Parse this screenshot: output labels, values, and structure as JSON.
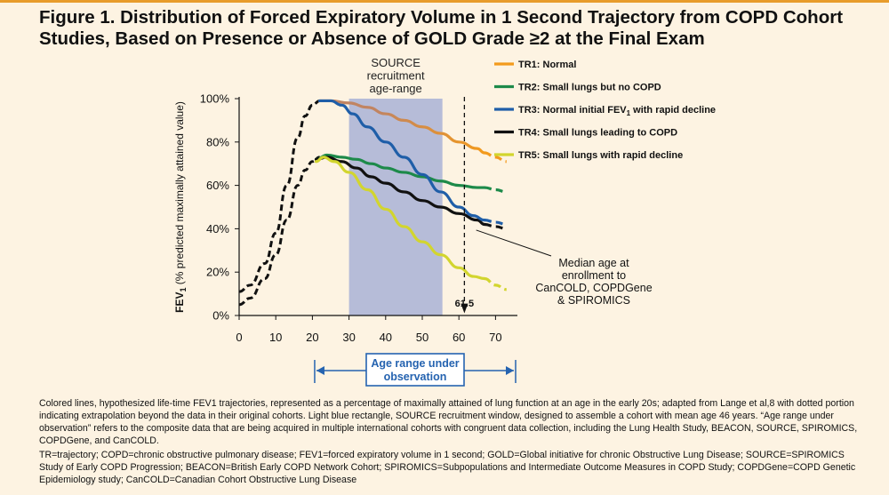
{
  "figure": {
    "title": "Figure 1. Distribution of Forced Expiratory Volume in 1 Second Trajectory from COPD Cohort Studies, Based on Presence or Absence of GOLD Grade ≥2 at the Final Exam",
    "caption_main": "Colored lines, hypothesized life-time FEV1 trajectories, represented as a percentage of maximally attained of lung function at an age in the early 20s; adapted from Lange et al,8 with dotted portion indicating extrapolation beyond the data in their original cohorts. Light blue rectangle, SOURCE recruitment window, designed to assemble a cohort with mean age 46 years. “Age range under observation” refers to the composite data that are being acquired in multiple international cohorts with congruent data collection, including the Lung Health Study, BEACON, SOURCE, SPIROMICS, COPDGene, and CanCOLD.",
    "caption_abbr": "TR=trajectory; COPD=chronic obstructive pulmonary disease; FEV1=forced expiratory volume in 1 second; GOLD=Global initiative for chronic Obstructive Lung Disease; SOURCE=SPIROMICS Study of Early COPD Progression; BEACON=British Early COPD Network Cohort; SPIROMICS=Subpopulations and Intermediate Outcome Measures in COPD Study; COPDGene=COPD Genetic Epidemiology study; CanCOLD=Canadian Cohort Obstructive Lung Disease"
  },
  "chart_data": {
    "type": "line",
    "title": "",
    "xlabel": "",
    "ylabel": "FEV1 (% predicted maximally attained value)",
    "xlim": [
      0,
      75
    ],
    "ylim": [
      0,
      100
    ],
    "x_ticks": [
      "0",
      "10",
      "20",
      "30",
      "40",
      "50",
      "60",
      "70"
    ],
    "y_ticks": [
      "0%",
      "20%",
      "40%",
      "60%",
      "80%",
      "100%"
    ],
    "grid": false,
    "legend_position": "top-right",
    "colors": {
      "tr1": "#f39a1c",
      "tr1_fade": "#c18461",
      "tr2": "#1d8a4a",
      "tr3": "#1f5ea8",
      "tr4": "#111111",
      "tr5": "#d2d52e",
      "extrap": "#111111",
      "source_window": "#b6bcd8",
      "observation": "#2563b0"
    },
    "growth_extrapolation": {
      "upper": {
        "x": [
          0,
          3,
          7,
          10,
          13,
          16,
          18,
          20,
          22
        ],
        "y": [
          11,
          14,
          24,
          38,
          60,
          82,
          92,
          97,
          99
        ]
      },
      "lower": {
        "x": [
          0,
          3,
          7,
          10,
          13,
          16,
          18,
          20,
          22
        ],
        "y": [
          5,
          8,
          17,
          28,
          44,
          60,
          67,
          71,
          73
        ]
      }
    },
    "series": [
      {
        "key": "tr1",
        "name": "TR1: Normal",
        "x": [
          22,
          25,
          30,
          35,
          40,
          45,
          50,
          55,
          60,
          65,
          67
        ],
        "y": [
          99,
          99,
          98,
          96,
          93,
          90,
          87,
          84,
          80,
          77,
          75
        ],
        "extrap_x": [
          67,
          70,
          73
        ],
        "extrap_y": [
          75,
          73,
          71
        ]
      },
      {
        "key": "tr2",
        "name": "TR2: Small lungs but no COPD",
        "x": [
          21,
          24,
          28,
          32,
          36,
          40,
          45,
          50,
          55,
          60,
          65,
          67
        ],
        "y": [
          72,
          74,
          73,
          72,
          70,
          68,
          66,
          64,
          62,
          60,
          59,
          59
        ],
        "extrap_x": [
          67,
          70,
          73
        ],
        "extrap_y": [
          59,
          58,
          57
        ]
      },
      {
        "key": "tr3",
        "name": "TR3: Normal initial FEV1 with rapid decline",
        "x": [
          22,
          25,
          28,
          31,
          35,
          40,
          45,
          50,
          55,
          60,
          64,
          67
        ],
        "y": [
          99,
          99,
          97,
          93,
          87,
          80,
          73,
          65,
          57,
          50,
          46,
          44
        ],
        "extrap_x": [
          67,
          70,
          73
        ],
        "extrap_y": [
          44,
          43,
          42
        ]
      },
      {
        "key": "tr4",
        "name": "TR4: Small lungs leading to COPD",
        "x": [
          21,
          24,
          28,
          32,
          36,
          40,
          45,
          50,
          55,
          60,
          65,
          67
        ],
        "y": [
          72,
          73,
          71,
          68,
          64,
          61,
          57,
          53,
          50,
          47,
          44,
          42
        ],
        "extrap_x": [
          67,
          70,
          73
        ],
        "extrap_y": [
          42,
          41,
          40
        ]
      },
      {
        "key": "tr5",
        "name": "TR5: Small lungs with rapid decline",
        "x": [
          21,
          23,
          26,
          30,
          35,
          40,
          45,
          50,
          55,
          60,
          64,
          67
        ],
        "y": [
          71,
          73,
          71,
          66,
          58,
          49,
          41,
          34,
          28,
          22,
          18,
          17
        ],
        "extrap_x": [
          67,
          70,
          73
        ],
        "extrap_y": [
          17,
          14,
          12
        ]
      }
    ],
    "source_window": {
      "label": "SOURCE recruitment age-range",
      "x_start": 30,
      "x_end": 55.5,
      "y_top": 100
    },
    "median_age": {
      "value": 61.5,
      "label": "61.5",
      "note": "Median age at enrollment to CanCOLD, COPDGene & SPIROMICS",
      "points_to": [
        64,
        41
      ]
    },
    "observation_range": {
      "label": "Age range under observation",
      "x_start": 20.5,
      "x_end": 75
    }
  }
}
